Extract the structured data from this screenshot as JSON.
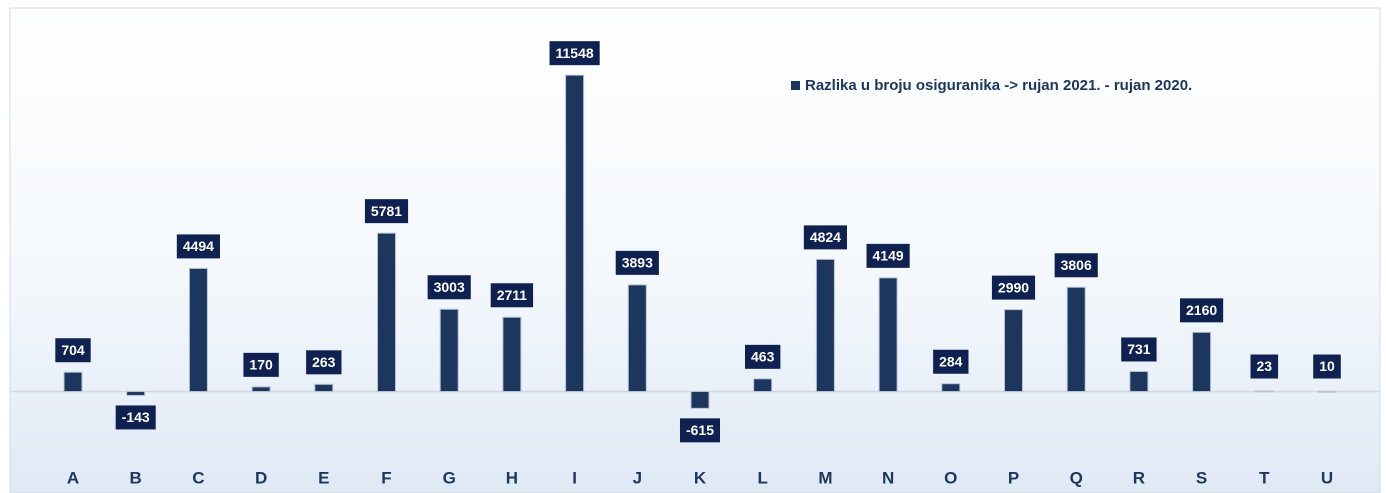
{
  "chart_data": {
    "type": "bar",
    "categories": [
      "A",
      "B",
      "C",
      "D",
      "E",
      "F",
      "G",
      "H",
      "I",
      "J",
      "K",
      "L",
      "M",
      "N",
      "O",
      "P",
      "Q",
      "R",
      "S",
      "T",
      "U"
    ],
    "series": [
      {
        "name": "Razlika u broju osiguranika -> rujan 2021. - rujan 2020.",
        "color": "#1c365e",
        "values": [
          704,
          -143,
          4494,
          170,
          263,
          5781,
          3003,
          2711,
          11548,
          3893,
          -615,
          463,
          4824,
          4149,
          284,
          2990,
          3806,
          731,
          2160,
          23,
          10
        ]
      }
    ],
    "ylim": [
      -2500,
      14000
    ],
    "legend": "top-right"
  }
}
